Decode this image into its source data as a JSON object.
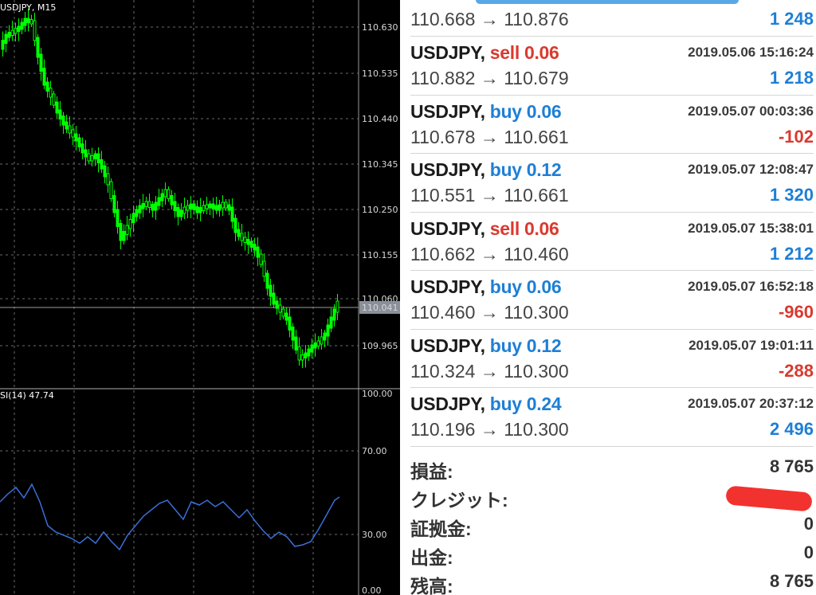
{
  "chart": {
    "symbol": "USDJPY, M15",
    "indicator": "SI(14) 47.74",
    "price_ticks": [
      "110.630",
      "110.535",
      "110.440",
      "110.345",
      "110.250",
      "110.155",
      "110.060",
      "109.965"
    ],
    "current_price": "110.041",
    "rsi_ticks": [
      "100.00",
      "70.00",
      "30.00",
      "0.00"
    ],
    "colors": {
      "background": "#000000",
      "candle": "#00ff00",
      "rsi_line": "#3a6fd8",
      "grid": "#6a6a6a"
    }
  },
  "history": {
    "partial_top": {
      "prices": "110.668 → 110.876",
      "profit": "1 248"
    },
    "deals": [
      {
        "symbol": "USDJPY,",
        "type": "sell",
        "volume": "0.06",
        "time": "2019.05.06 15:16:24",
        "prices": "110.882 → 110.679",
        "profit": "1 218"
      },
      {
        "symbol": "USDJPY,",
        "type": "buy",
        "volume": "0.06",
        "time": "2019.05.07 00:03:36",
        "prices": "110.678 → 110.661",
        "profit": "-102"
      },
      {
        "symbol": "USDJPY,",
        "type": "buy",
        "volume": "0.12",
        "time": "2019.05.07 12:08:47",
        "prices": "110.551 → 110.661",
        "profit": "1 320"
      },
      {
        "symbol": "USDJPY,",
        "type": "sell",
        "volume": "0.06",
        "time": "2019.05.07 15:38:01",
        "prices": "110.662 → 110.460",
        "profit": "1 212"
      },
      {
        "symbol": "USDJPY,",
        "type": "buy",
        "volume": "0.06",
        "time": "2019.05.07 16:52:18",
        "prices": "110.460 → 110.300",
        "profit": "-960"
      },
      {
        "symbol": "USDJPY,",
        "type": "buy",
        "volume": "0.12",
        "time": "2019.05.07 19:01:11",
        "prices": "110.324 → 110.300",
        "profit": "-288"
      },
      {
        "symbol": "USDJPY,",
        "type": "buy",
        "volume": "0.24",
        "time": "2019.05.07 20:37:12",
        "prices": "110.196 → 110.300",
        "profit": "2 496"
      }
    ],
    "summary": {
      "profit_label": "損益:",
      "profit_value": "8 765",
      "credit_label": "クレジット:",
      "margin_label": "証拠金:",
      "margin_value": "0",
      "withdrawal_label": "出金:",
      "withdrawal_value": "0",
      "balance_label": "残高:",
      "balance_value": "8 765"
    }
  }
}
